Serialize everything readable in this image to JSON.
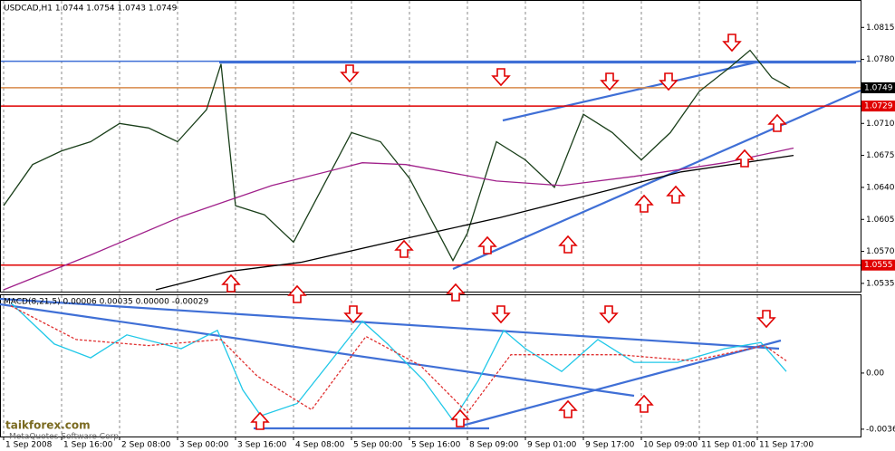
{
  "chart_data": [
    {
      "type": "line",
      "title": "USDCAD,H1 1.0744 1.0754 1.0743 1.0749",
      "xlim": [
        -1,
        236.5
      ],
      "ylim": [
        1.0526,
        1.0845
      ],
      "yticks": [
        1.0815,
        {
          "value": 1.078,
          "label": "1.0780"
        },
        {
          "value": 1.071,
          "label": "1.0710"
        },
        1.0675,
        {
          "value": 1.064,
          "label": "1.0640"
        },
        1.0605,
        {
          "value": 1.057,
          "label": "1.0570"
        },
        1.0535
      ],
      "levels": [
        {
          "value": 1.0778,
          "color": "#3f6fd6"
        },
        {
          "value": 1.0749,
          "color": "#d88a4a",
          "label_color": "#000000"
        },
        {
          "value": 1.0729,
          "color": "#e00000",
          "label_color": "#e00000"
        },
        {
          "value": 1.0555,
          "color": "#e00000",
          "label_color": "#e00000"
        }
      ],
      "series": [
        {
          "color": "#1a3f1a",
          "x": [
            0,
            8,
            16,
            24,
            32,
            40,
            48,
            56,
            60,
            64,
            72,
            80,
            88,
            96,
            104,
            112,
            120,
            124,
            128,
            136,
            144,
            152,
            160,
            168,
            176,
            184,
            192,
            200,
            206,
            212,
            217
          ],
          "values": [
            1.062,
            1.0665,
            1.068,
            1.069,
            1.071,
            1.0705,
            1.069,
            1.0725,
            1.0775,
            1.062,
            1.061,
            1.058,
            1.064,
            1.07,
            1.069,
            1.065,
            1.059,
            1.056,
            1.059,
            1.069,
            1.067,
            1.064,
            1.072,
            1.07,
            1.067,
            1.07,
            1.0745,
            1.077,
            1.079,
            1.076,
            1.0749
          ]
        },
        {
          "color": "#000000",
          "x": [
            42,
            62,
            82,
            112,
            137,
            162,
            187,
            218
          ],
          "values": [
            1.0528,
            1.0548,
            1.0558,
            1.0585,
            1.0607,
            1.0632,
            1.0657,
            1.0675
          ]
        },
        {
          "color": "#a0208a",
          "x": [
            0,
            24,
            49,
            74,
            99,
            111,
            136,
            154,
            174,
            199,
            218
          ],
          "values": [
            1.0528,
            1.0566,
            1.0608,
            1.0642,
            1.0667,
            1.0665,
            1.0647,
            1.0642,
            1.0652,
            1.0667,
            1.0683
          ]
        }
      ],
      "grid": true,
      "watermark": "MetaQuotes Software Corp.",
      "site": "taikforex.com"
    },
    {
      "type": "line",
      "title": "MACD(8,21,5) 0.00006 0.00035 0.00000 -0.00029",
      "xlim": [
        -1,
        236.5
      ],
      "ylim": [
        -0.00416,
        0.00516
      ],
      "yticks": [
        {
          "value": 0,
          "label": "0.00"
        },
        -0.00368
      ],
      "xticks": [
        {
          "value": 0,
          "label": "1 Sep 2008"
        },
        {
          "value": 16,
          "label": "1 Sep 16:00"
        },
        {
          "value": 32,
          "label": "2 Sep 08:00"
        },
        {
          "value": 48,
          "label": "3 Sep 00:00"
        },
        {
          "value": 64,
          "label": "3 Sep 16:00"
        },
        {
          "value": 80,
          "label": "4 Sep 08:00"
        },
        {
          "value": 96,
          "label": "5 Sep 00:00"
        },
        {
          "value": 112,
          "label": "5 Sep 16:00"
        },
        {
          "value": 128,
          "label": "8 Sep 09:00"
        },
        {
          "value": 144,
          "label": "9 Sep 01:00"
        },
        {
          "value": 160,
          "label": "9 Sep 17:00"
        },
        {
          "value": 176,
          "label": "10 Sep 09:00"
        },
        {
          "value": 192,
          "label": "11 Sep 01:00"
        },
        {
          "value": 208,
          "label": "11 Sep 17:00"
        }
      ],
      "series": [
        {
          "color": "#20c8e8",
          "x": [
            2,
            14,
            24,
            34,
            49,
            59,
            66,
            71,
            81,
            94,
            99,
            106,
            116,
            124,
            131,
            138,
            144,
            154,
            164,
            174,
            186,
            199,
            209,
            216
          ],
          "values": [
            0.0046,
            0.0019,
            0.001,
            0.0025,
            0.0016,
            0.0028,
            -0.0011,
            -0.0028,
            -0.002,
            0.0019,
            0.0034,
            0.0019,
            -0.0005,
            -0.0031,
            -0.0005,
            0.0028,
            0.0016,
            0.0001,
            0.0022,
            0.0007,
            0.0007,
            0.0016,
            0.002,
            0.0001
          ],
          "dash": false
        },
        {
          "color": "#e03030",
          "x": [
            2,
            20,
            40,
            60,
            70,
            85,
            100,
            115,
            128,
            140,
            155,
            170,
            190,
            210,
            216
          ],
          "values": [
            0.0044,
            0.0022,
            0.0018,
            0.0022,
            -0.0002,
            -0.0024,
            0.0024,
            0.0005,
            -0.0026,
            0.0012,
            0.0012,
            0.0012,
            0.0008,
            0.0018,
            0.0008
          ],
          "dash": true
        }
      ],
      "grid": true
    }
  ]
}
